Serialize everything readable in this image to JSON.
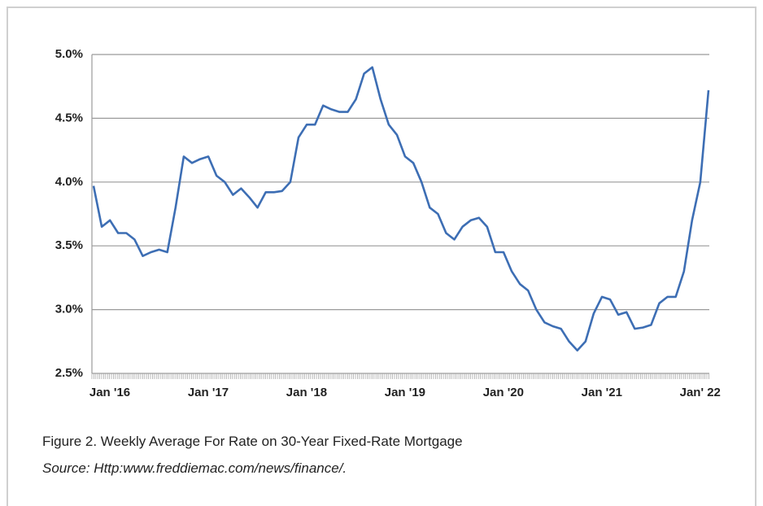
{
  "chart_data": {
    "type": "line",
    "categories": [
      "Jan '16",
      null,
      null,
      null,
      null,
      null,
      null,
      null,
      null,
      null,
      null,
      null,
      "Jan '17",
      null,
      null,
      null,
      null,
      null,
      null,
      null,
      null,
      null,
      null,
      null,
      "Jan '18",
      null,
      null,
      null,
      null,
      null,
      null,
      null,
      null,
      null,
      null,
      null,
      "Jan '19",
      null,
      null,
      null,
      null,
      null,
      null,
      null,
      null,
      null,
      null,
      null,
      "Jan '20",
      null,
      null,
      null,
      null,
      null,
      null,
      null,
      null,
      null,
      null,
      null,
      "Jan '21",
      null,
      null,
      null,
      null,
      null,
      null,
      null,
      null,
      null,
      null,
      null,
      "Jan' 22",
      null,
      null,
      null
    ],
    "values": [
      3.97,
      3.65,
      3.7,
      3.6,
      3.6,
      3.55,
      3.42,
      3.45,
      3.47,
      3.45,
      3.8,
      4.2,
      4.15,
      4.18,
      4.2,
      4.05,
      4.0,
      3.9,
      3.95,
      3.88,
      3.8,
      3.92,
      3.92,
      3.93,
      4.0,
      4.35,
      4.45,
      4.45,
      4.6,
      4.57,
      4.55,
      4.55,
      4.65,
      4.85,
      4.9,
      4.65,
      4.45,
      4.37,
      4.2,
      4.15,
      4.0,
      3.8,
      3.75,
      3.6,
      3.55,
      3.65,
      3.7,
      3.72,
      3.65,
      3.45,
      3.45,
      3.3,
      3.2,
      3.15,
      3.0,
      2.9,
      2.87,
      2.85,
      2.75,
      2.68,
      2.75,
      2.97,
      3.1,
      3.08,
      2.96,
      2.98,
      2.85,
      2.86,
      2.88,
      3.05,
      3.1,
      3.1,
      3.3,
      3.7,
      4.0,
      4.72
    ],
    "color": "#3d6eb4",
    "ylim": [
      2.5,
      5.0
    ],
    "yticks": [
      {
        "value": 2.5,
        "label": "2.5%"
      },
      {
        "value": 3.0,
        "label": "3.0%"
      },
      {
        "value": 3.5,
        "label": "3.5%"
      },
      {
        "value": 4.0,
        "label": "4.0%"
      },
      {
        "value": 4.5,
        "label": "4.5%"
      },
      {
        "value": 5.0,
        "label": "5.0%"
      }
    ],
    "grid": true
  },
  "caption": "Figure 2. Weekly Average For Rate on 30-Year Fixed-Rate Mortgage",
  "source": "Source: Http:www.freddiemac.com/news/finance/."
}
